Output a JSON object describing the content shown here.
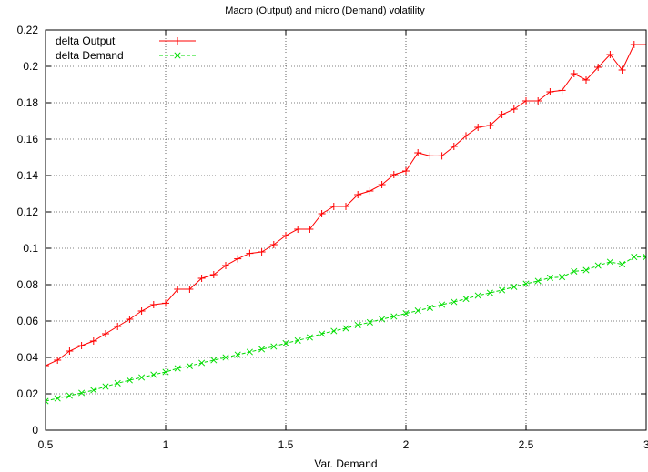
{
  "chart_data": {
    "type": "line",
    "title": "Macro (Output) and micro (Demand) volatility",
    "xlabel": "Var. Demand",
    "ylabel": "",
    "xlim": [
      0.5,
      3
    ],
    "ylim": [
      0,
      0.22
    ],
    "xticks": [
      0.5,
      1,
      1.5,
      2,
      2.5,
      3
    ],
    "xtick_labels": [
      "0.5",
      "1",
      "1.5",
      "2",
      "2.5",
      "3"
    ],
    "yticks": [
      0,
      0.02,
      0.04,
      0.06,
      0.08,
      0.1,
      0.12,
      0.14,
      0.16,
      0.18,
      0.2,
      0.22
    ],
    "ytick_labels": [
      "0",
      "0.02",
      "0.04",
      "0.06",
      "0.08",
      "0.1",
      "0.12",
      "0.14",
      "0.16",
      "0.18",
      "0.2",
      "0.22"
    ],
    "grid": true,
    "legend_position": "top-left",
    "x": [
      0.5,
      0.55,
      0.6,
      0.65,
      0.7,
      0.75,
      0.8,
      0.85,
      0.9,
      0.95,
      1.0,
      1.05,
      1.1,
      1.15,
      1.2,
      1.25,
      1.3,
      1.35,
      1.4,
      1.45,
      1.5,
      1.55,
      1.6,
      1.65,
      1.7,
      1.75,
      1.8,
      1.85,
      1.9,
      1.95,
      2.0,
      2.05,
      2.1,
      2.15,
      2.2,
      2.25,
      2.3,
      2.35,
      2.4,
      2.45,
      2.5,
      2.55,
      2.6,
      2.65,
      2.7,
      2.75,
      2.8,
      2.85,
      2.9,
      2.95,
      3.0
    ],
    "series": [
      {
        "name": "delta Output",
        "color": "#ff0000",
        "marker": "plus",
        "values": [
          0.0355,
          0.0385,
          0.0435,
          0.0465,
          0.049,
          0.053,
          0.057,
          0.061,
          0.0655,
          0.069,
          0.0698,
          0.0775,
          0.0775,
          0.0835,
          0.0855,
          0.0905,
          0.0942,
          0.0972,
          0.098,
          0.102,
          0.107,
          0.1105,
          0.1105,
          0.119,
          0.123,
          0.123,
          0.1295,
          0.1315,
          0.135,
          0.1405,
          0.1425,
          0.1525,
          0.1508,
          0.1508,
          0.156,
          0.1618,
          0.1665,
          0.1675,
          0.1735,
          0.1765,
          0.181,
          0.181,
          0.186,
          0.1868,
          0.196,
          0.1925,
          0.1995,
          0.2065,
          0.198,
          0.212,
          0.212
        ]
      },
      {
        "name": "delta Demand",
        "color": "#00dd00",
        "marker": "cross",
        "values": [
          0.016,
          0.0175,
          0.019,
          0.0205,
          0.022,
          0.024,
          0.0258,
          0.0275,
          0.029,
          0.0305,
          0.032,
          0.034,
          0.0353,
          0.037,
          0.0385,
          0.04,
          0.0415,
          0.043,
          0.0445,
          0.046,
          0.0478,
          0.0493,
          0.051,
          0.053,
          0.0545,
          0.056,
          0.0578,
          0.0593,
          0.061,
          0.0625,
          0.0642,
          0.0657,
          0.0673,
          0.069,
          0.0705,
          0.0722,
          0.074,
          0.0755,
          0.077,
          0.0788,
          0.0805,
          0.082,
          0.0838,
          0.0842,
          0.0873,
          0.088,
          0.0905,
          0.0925,
          0.0912,
          0.0952,
          0.0952
        ]
      }
    ]
  }
}
